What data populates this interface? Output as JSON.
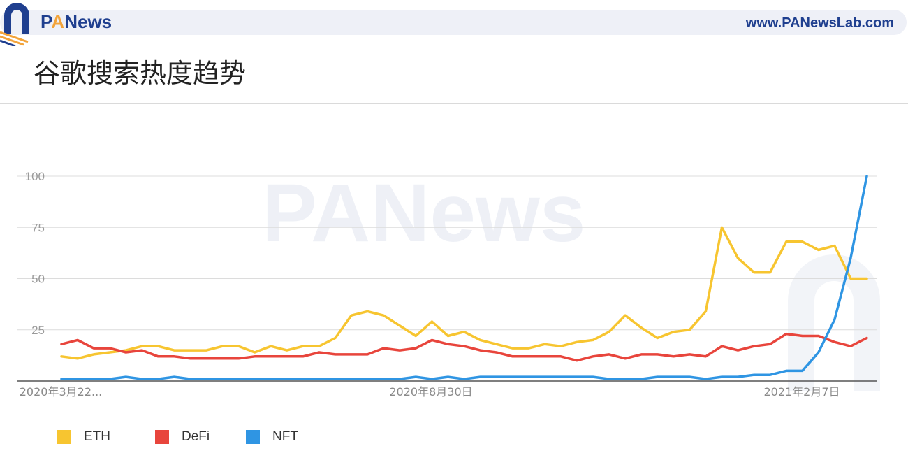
{
  "header": {
    "brand_text": "PANews",
    "website": "www.PANewsLab.com",
    "title": "谷歌搜索热度趋势"
  },
  "watermark": "PANews",
  "colors": {
    "eth": "#f7c530",
    "defi": "#e8453c",
    "nft": "#2f95e3",
    "brand": "#1f3f8f",
    "brand_accent": "#f2a33a"
  },
  "chart_data": {
    "type": "line",
    "title": "谷歌搜索热度趋势",
    "xlabel": "",
    "ylabel": "",
    "ylim": [
      0,
      100
    ],
    "y_ticks": [
      25,
      50,
      75,
      100
    ],
    "x_tick_labels": [
      "2020年3月22...",
      "2020年8月30日",
      "2021年2月7日"
    ],
    "grid": true,
    "legend_position": "bottom-left",
    "series": [
      {
        "name": "ETH",
        "color": "#f7c530",
        "values": [
          12,
          11,
          13,
          14,
          15,
          17,
          17,
          15,
          15,
          15,
          17,
          17,
          14,
          17,
          15,
          17,
          17,
          21,
          32,
          34,
          32,
          27,
          22,
          29,
          22,
          24,
          20,
          18,
          16,
          16,
          18,
          17,
          19,
          20,
          24,
          32,
          26,
          21,
          24,
          25,
          34,
          75,
          60,
          53,
          53,
          68,
          68,
          64,
          66,
          50,
          50
        ]
      },
      {
        "name": "DeFi",
        "color": "#e8453c",
        "values": [
          18,
          20,
          16,
          16,
          14,
          15,
          12,
          12,
          11,
          11,
          11,
          11,
          12,
          12,
          12,
          12,
          14,
          13,
          13,
          13,
          16,
          15,
          16,
          20,
          18,
          17,
          15,
          14,
          12,
          12,
          12,
          12,
          10,
          12,
          13,
          11,
          13,
          13,
          12,
          13,
          12,
          17,
          15,
          17,
          18,
          23,
          22,
          22,
          19,
          17,
          21
        ]
      },
      {
        "name": "NFT",
        "color": "#2f95e3",
        "values": [
          1,
          1,
          1,
          1,
          2,
          1,
          1,
          2,
          1,
          1,
          1,
          1,
          1,
          1,
          1,
          1,
          1,
          1,
          1,
          1,
          1,
          1,
          2,
          1,
          2,
          1,
          2,
          2,
          2,
          2,
          2,
          2,
          2,
          2,
          1,
          1,
          1,
          2,
          2,
          2,
          1,
          2,
          2,
          3,
          3,
          5,
          5,
          14,
          30,
          60,
          100
        ]
      }
    ]
  }
}
